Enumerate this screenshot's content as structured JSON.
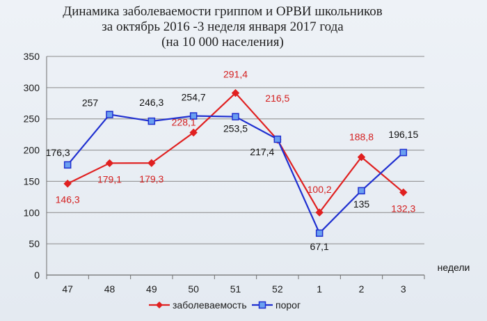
{
  "chart_data": {
    "type": "line",
    "title_lines": [
      "Динамика заболеваемости гриппом и ОРВИ школьников",
      "за октябрь 2016 -3 неделя января 2017 года",
      "(на 10 000 населения)"
    ],
    "xlabel": "недели",
    "ylabel": "",
    "categories": [
      "47",
      "48",
      "49",
      "50",
      "51",
      "52",
      "1",
      "2",
      "3"
    ],
    "ylim": [
      0,
      350
    ],
    "yticks": [
      "0",
      "50",
      "100",
      "150",
      "200",
      "250",
      "300",
      "350"
    ],
    "grid": true,
    "legend_position": "bottom",
    "series": [
      {
        "name": "заболеваемость",
        "color": "#e02020",
        "marker": "diamond",
        "values": [
          146.3,
          179.1,
          179.3,
          228.1,
          291.4,
          216.5,
          100.2,
          188.8,
          132.3
        ],
        "labels": [
          "146,3",
          "179,1",
          "179,3",
          "228,1",
          "291,4",
          "216,5",
          "100,2",
          "188,8",
          "132,3"
        ]
      },
      {
        "name": "порог",
        "color": "#1f2fd0",
        "marker": "square",
        "values": [
          176.3,
          257,
          246.3,
          254.7,
          253.5,
          217.4,
          67.1,
          135,
          196.15
        ],
        "labels": [
          "176,3",
          "257",
          "246,3",
          "254,7",
          "253,5",
          "217,4",
          "67,1",
          "135",
          "196,15"
        ]
      }
    ]
  }
}
